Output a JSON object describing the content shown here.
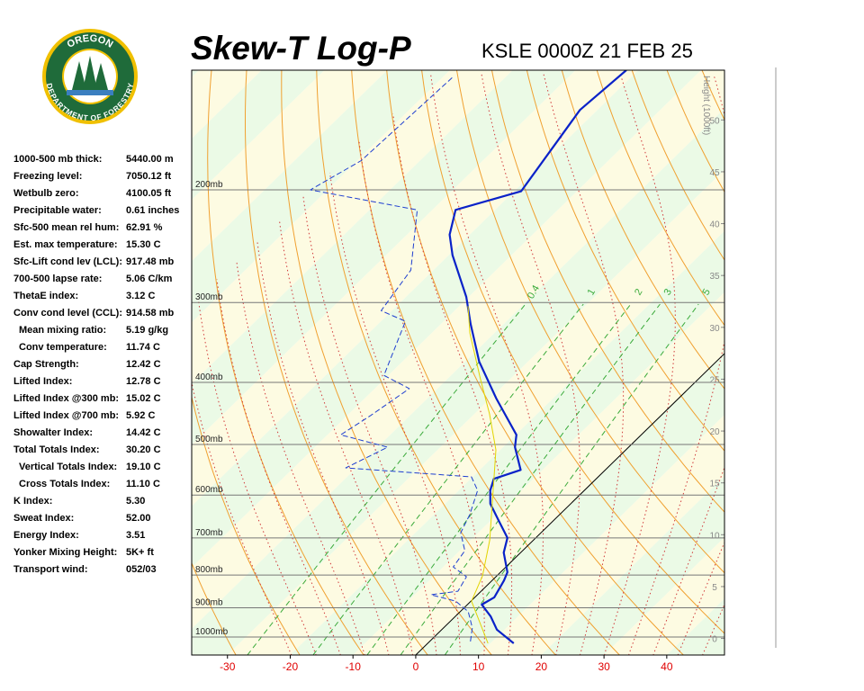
{
  "logo": {
    "top": "OREGON",
    "bottom": "DEPARTMENT OF FORESTRY"
  },
  "header": {
    "title": "Skew-T Log-P",
    "station": "KSLE 0000Z 21 FEB 25"
  },
  "indices": [
    {
      "label": "1000-500 mb thick:",
      "value": "5440.00 m"
    },
    {
      "label": "Freezing level:",
      "value": "7050.12 ft"
    },
    {
      "label": "Wetbulb zero:",
      "value": "4100.05 ft"
    },
    {
      "label": "Precipitable water:",
      "value": "0.61 inches"
    },
    {
      "label": "Sfc-500 mean rel hum:",
      "value": "62.91 %"
    },
    {
      "label": "Est. max temperature:",
      "value": "15.30 C"
    },
    {
      "label": "Sfc-Lift cond lev (LCL):",
      "value": "917.48 mb"
    },
    {
      "label": "700-500 lapse rate:",
      "value": "5.06 C/km"
    },
    {
      "label": "ThetaE index:",
      "value": "3.12 C"
    },
    {
      "label": "Conv cond level (CCL):",
      "value": "914.58 mb"
    },
    {
      "label": "Mean mixing ratio:",
      "value": "5.19 g/kg",
      "indent": true
    },
    {
      "label": "Conv temperature:",
      "value": "11.74 C",
      "indent": true
    },
    {
      "label": "Cap Strength:",
      "value": "12.42 C"
    },
    {
      "label": "Lifted Index:",
      "value": "12.78 C"
    },
    {
      "label": "Lifted Index @300 mb:",
      "value": "15.02 C"
    },
    {
      "label": "Lifted Index @700 mb:",
      "value": "5.92 C"
    },
    {
      "label": "Showalter Index:",
      "value": "14.42 C"
    },
    {
      "label": "Total Totals Index:",
      "value": "30.20 C"
    },
    {
      "label": "Vertical Totals Index:",
      "value": "19.10 C",
      "indent": true
    },
    {
      "label": "Cross Totals Index:",
      "value": "11.10 C",
      "indent": true
    },
    {
      "label": "K Index:",
      "value": "5.30"
    },
    {
      "label": "Sweat Index:",
      "value": "52.00"
    },
    {
      "label": "Energy Index:",
      "value": "3.51"
    },
    {
      "label": "Yonker Mixing Height:",
      "value": "5K+ ft"
    },
    {
      "label": "Transport wind:",
      "value": "052/03"
    }
  ],
  "chart_data": {
    "type": "skewt",
    "xlim": [
      -35.7,
      49.2
    ],
    "xticks": [
      -30,
      -20,
      -10,
      0,
      10,
      20,
      30,
      40
    ],
    "xtick_color": "#e00000",
    "ylim": [
      1067,
      130
    ],
    "yscale": "log",
    "yticks": [
      {
        "value": 200,
        "label": "200mb"
      },
      {
        "value": 300,
        "label": "300mb"
      },
      {
        "value": 400,
        "label": "400mb"
      },
      {
        "value": 500,
        "label": "500mb"
      },
      {
        "value": 600,
        "label": "600mb"
      },
      {
        "value": 700,
        "label": "700mb"
      },
      {
        "value": 800,
        "label": "800mb"
      },
      {
        "value": 900,
        "label": "900mb"
      },
      {
        "value": 1000,
        "label": "1000mb"
      }
    ],
    "y2label": "Height (1000ft)",
    "y2lim": [
      -1.6,
      54.8
    ],
    "y2ticks": [
      0,
      5,
      10,
      15,
      20,
      25,
      30,
      35,
      40,
      45,
      50
    ],
    "mixing_ratio_lines": [
      0.4,
      1,
      2,
      3,
      5
    ],
    "series": [
      {
        "color": "#0a22c8",
        "style": "solid",
        "width": 2.2,
        "pressure": [
          1023,
          974,
          928,
          890,
          867,
          816,
          792,
          738,
          700,
          657,
          619,
          590,
          566,
          548,
          505,
          483,
          424,
          371,
          324,
          294,
          253,
          235,
          215,
          201,
          150,
          130
        ],
        "values": [
          13.7,
          8.8,
          5.6,
          2.3,
          3.1,
          1.9,
          1.1,
          -2.7,
          -4.5,
          -8.8,
          -12.8,
          -15.0,
          -16.3,
          -13.5,
          -18.1,
          -19.9,
          -29.0,
          -37.8,
          -45.3,
          -50.4,
          -59.4,
          -63.2,
          -66.3,
          -58.9,
          -62.8,
          -61.9
        ]
      },
      {
        "color": "#1f3fd0",
        "style": "dashed",
        "width": 1,
        "pressure": [
          1016,
          968,
          913,
          879,
          859,
          848,
          805,
          777,
          733,
          687,
          644,
          590,
          562,
          544,
          505,
          483,
          451,
          409,
          390,
          321,
          309,
          267,
          215,
          200,
          180,
          133
        ],
        "values": [
          6.5,
          4.6,
          1.3,
          -2.4,
          -7.4,
          -3.7,
          -4.7,
          -8.4,
          -9.2,
          -12.8,
          -14.3,
          -17.0,
          -20.2,
          -41.7,
          -38.4,
          -47.9,
          -46.3,
          -44.5,
          -50.7,
          -56.1,
          -61.7,
          -63.6,
          -72.4,
          -92.7,
          -89.4,
          -88.4
        ]
      },
      {
        "color": "#e2d400",
        "style": "solid",
        "width": 1,
        "pressure": [
          1023,
          879,
          802,
          705,
          510,
          448,
          394,
          335,
          304
        ],
        "values": [
          9.6,
          0.1,
          -2.3,
          -7.0,
          -20.7,
          -27.6,
          -34.9,
          -43.9,
          -48.6
        ]
      }
    ]
  }
}
